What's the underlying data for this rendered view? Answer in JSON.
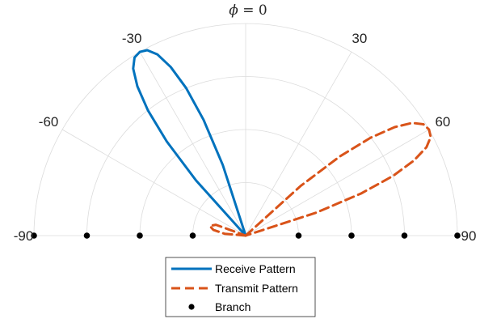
{
  "chart_data": {
    "type": "polar-line",
    "title_symbol": "ϕ",
    "title_value": " = 0",
    "theta_range": [
      -90,
      90
    ],
    "theta_ticks": [
      -90,
      -60,
      -30,
      0,
      30,
      60,
      90
    ],
    "theta_tick_labels": [
      "-90",
      "-60",
      "-30",
      "",
      "30",
      "60",
      "90"
    ],
    "grid": true,
    "legend_position": "bottom",
    "series": [
      {
        "name": "Receive Pattern",
        "style": "solid",
        "color": "#0072BD",
        "peak_theta": -30,
        "beamwidth_deg": 10,
        "theta": [
          -44,
          -42,
          -40,
          -38,
          -36,
          -34,
          -32,
          -30,
          -28,
          -26,
          -24,
          -22,
          -20,
          -18,
          -16
        ],
        "r": [
          0.0,
          0.35,
          0.58,
          0.75,
          0.87,
          0.95,
          0.99,
          1.0,
          0.99,
          0.95,
          0.87,
          0.75,
          0.58,
          0.35,
          0.0
        ]
      },
      {
        "name": "Transmit Pattern",
        "style": "dashed",
        "color": "#D95319",
        "peak_theta": 60,
        "beamwidth_deg": 10,
        "theta": [
          46,
          48,
          50,
          52,
          54,
          56,
          58,
          60,
          62,
          64,
          66,
          68,
          70,
          72,
          74
        ],
        "r": [
          0.0,
          0.35,
          0.58,
          0.75,
          0.87,
          0.95,
          0.99,
          1.0,
          0.99,
          0.95,
          0.87,
          0.75,
          0.58,
          0.35,
          0.0
        ],
        "sidelobe_theta": [
          -90,
          -85,
          -80,
          -75,
          -70,
          -65
        ],
        "sidelobe_r": [
          0.0,
          0.1,
          0.155,
          0.175,
          0.15,
          0.0
        ]
      },
      {
        "name": "Branch",
        "style": "marker",
        "color": "#000000",
        "theta": [
          -90,
          -90,
          -90,
          -90,
          90,
          90,
          90,
          90
        ],
        "r": [
          1.0,
          0.75,
          0.5,
          0.25,
          0.25,
          0.5,
          0.75,
          1.0
        ]
      }
    ]
  }
}
